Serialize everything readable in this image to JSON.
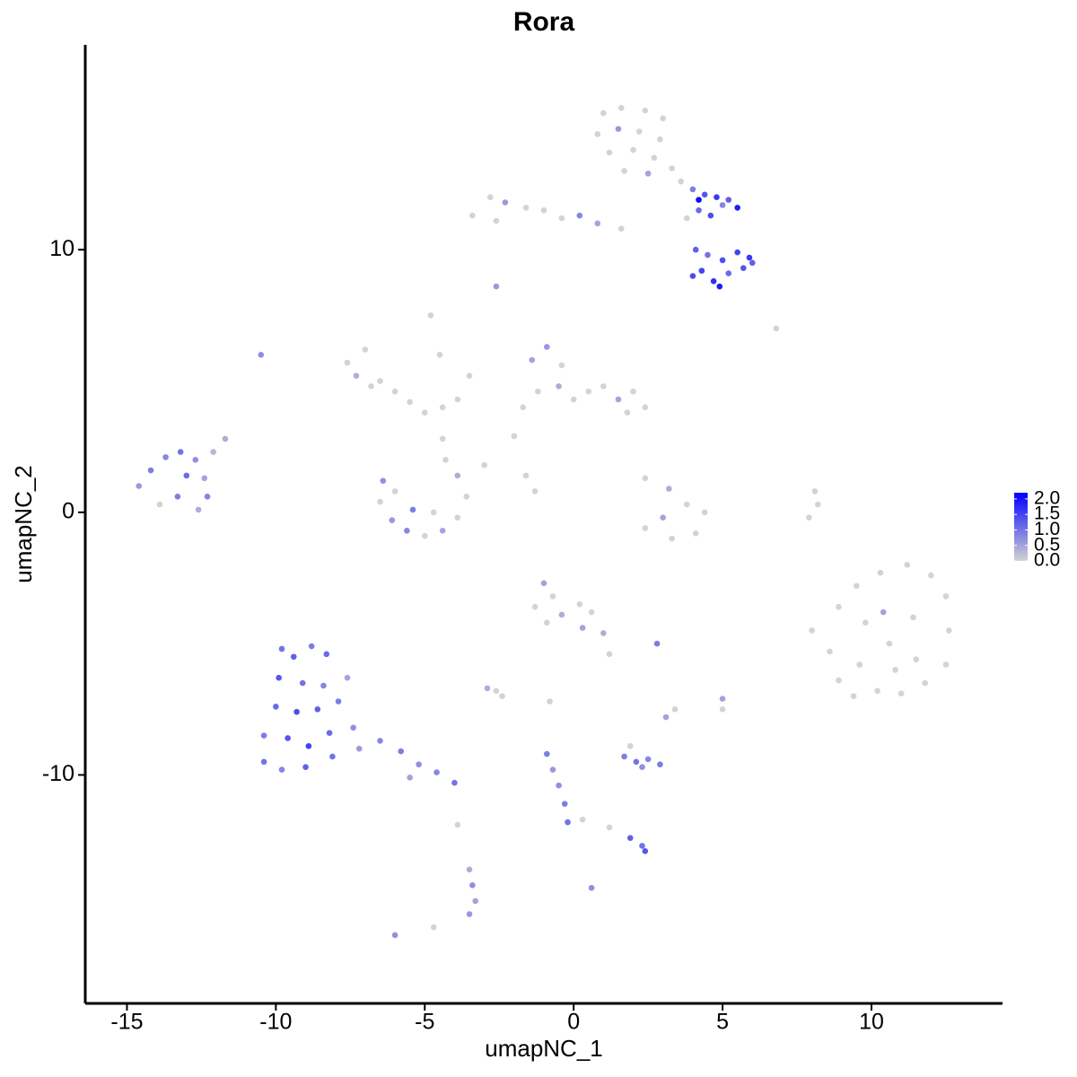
{
  "chart_data": {
    "type": "scatter",
    "title": "Rora",
    "x_label": "umapNC_1",
    "y_label": "umapNC_2",
    "xlim": [
      -16.4,
      14.4
    ],
    "ylim": [
      -18.7,
      17.8
    ],
    "xticks": [
      -15,
      -10,
      -5,
      0,
      5,
      10
    ],
    "yticks": [
      -10,
      0,
      10
    ],
    "color_low": "#d3d3d3",
    "color_high": "#0000ff",
    "color_range": [
      0,
      2.2
    ],
    "colorbar_ticks": [
      {
        "value": 0,
        "label": "0.0"
      },
      {
        "value": 0.5,
        "label": "0.5"
      },
      {
        "value": 1,
        "label": "1.0"
      },
      {
        "value": 1.5,
        "label": "1.5"
      },
      {
        "value": 2,
        "label": "2.0"
      }
    ],
    "x": [
      1.0,
      1.6,
      2.4,
      3.0,
      0.8,
      1.5,
      2.2,
      2.9,
      1.2,
      2.0,
      2.7,
      3.3,
      1.7,
      2.5,
      3.6,
      4.0,
      4.4,
      4.8,
      5.2,
      5.5,
      4.2,
      4.6,
      5.0,
      3.8,
      4.1,
      4.5,
      5.0,
      5.5,
      5.9,
      5.7,
      4.3,
      4.7,
      4.9,
      5.2,
      4.0,
      6.0,
      -3.4,
      -2.8,
      -2.3,
      -1.6,
      -1.0,
      -0.4,
      0.2,
      0.8,
      1.6,
      -2.6,
      -2.6,
      -10.5,
      6.8,
      -4.8,
      -7.6,
      -7.0,
      -7.3,
      -6.5,
      -6.0,
      -5.5,
      -5.0,
      -4.4,
      -3.9,
      -4.5,
      -3.5,
      -6.8,
      -4.4,
      -4.3,
      -6.4,
      -6.5,
      -6.1,
      -5.6,
      -5.0,
      -4.4,
      -3.9,
      -3.6,
      -3.9,
      -5.4,
      -4.7,
      -6.0,
      -1.7,
      -1.2,
      -1.4,
      -0.9,
      -0.4,
      -0.5,
      0.0,
      0.5,
      1.0,
      1.5,
      2.0,
      2.4,
      1.8,
      -2.0,
      -3.0,
      -1.3,
      -1.6,
      2.4,
      3.2,
      3.8,
      4.4,
      4.1,
      3.3,
      2.4,
      3.0,
      8.1,
      7.9,
      8.2,
      8.0,
      8.6,
      8.9,
      9.4,
      10.2,
      11.0,
      11.8,
      12.5,
      12.6,
      12.5,
      12.0,
      11.2,
      10.3,
      9.5,
      8.9,
      9.8,
      10.6,
      11.4,
      10.4,
      9.6,
      11.5,
      10.8,
      -14.6,
      -14.2,
      -13.7,
      -13.2,
      -12.7,
      -12.4,
      -12.3,
      -12.6,
      -13.3,
      -13.9,
      -13.0,
      -11.7,
      -12.1,
      -9.8,
      -9.4,
      -8.8,
      -8.3,
      -9.9,
      -9.1,
      -8.4,
      -10.0,
      -9.3,
      -8.6,
      -7.9,
      -10.4,
      -9.6,
      -8.9,
      -8.2,
      -7.4,
      -10.4,
      -9.8,
      -9.0,
      -8.1,
      -7.2,
      -7.6,
      -6.5,
      -5.8,
      -5.2,
      -4.6,
      -4.0,
      -5.5,
      -1.0,
      -0.7,
      -1.3,
      -0.4,
      0.2,
      0.6,
      1.0,
      1.2,
      -0.9,
      0.3,
      -2.9,
      -2.4,
      -2.6,
      -0.8,
      2.8,
      5.0,
      5.0,
      3.4,
      3.1,
      1.7,
      2.1,
      2.5,
      2.9,
      2.3,
      1.9,
      -0.9,
      -0.7,
      -0.5,
      -0.3,
      -0.2,
      0.3,
      1.2,
      1.9,
      2.3,
      2.4,
      -3.5,
      -3.4,
      -3.3,
      -3.5,
      -3.9,
      0.6,
      -6.0,
      -4.7,
      4.2
    ],
    "y": [
      15.2,
      15.4,
      15.3,
      15.0,
      14.4,
      14.6,
      14.5,
      14.2,
      13.7,
      13.8,
      13.5,
      13.1,
      13.0,
      12.9,
      12.6,
      12.3,
      12.1,
      12.0,
      11.9,
      11.6,
      11.5,
      11.3,
      11.7,
      11.2,
      10.0,
      9.8,
      9.6,
      9.9,
      9.7,
      9.3,
      9.2,
      8.8,
      8.6,
      9.1,
      9.0,
      9.5,
      11.3,
      12.0,
      11.8,
      11.6,
      11.5,
      11.2,
      11.3,
      11.0,
      10.8,
      11.1,
      8.6,
      6.0,
      7.0,
      7.5,
      5.7,
      6.2,
      5.2,
      5.0,
      4.6,
      4.2,
      3.8,
      4.0,
      4.3,
      6.0,
      5.2,
      4.8,
      2.8,
      2.0,
      1.2,
      0.4,
      -0.3,
      -0.7,
      -0.9,
      -0.7,
      -0.2,
      0.6,
      1.4,
      0.1,
      0.0,
      0.8,
      4.0,
      4.6,
      5.8,
      6.3,
      5.6,
      4.8,
      4.3,
      4.6,
      4.8,
      4.3,
      4.6,
      4.0,
      3.8,
      2.9,
      1.8,
      0.8,
      1.4,
      1.3,
      0.9,
      0.3,
      0.0,
      -0.8,
      -1.0,
      -0.6,
      -0.2,
      0.8,
      -0.2,
      0.3,
      -4.5,
      -5.3,
      -6.4,
      -7.0,
      -6.8,
      -6.9,
      -6.5,
      -5.8,
      -4.5,
      -3.2,
      -2.4,
      -2.0,
      -2.3,
      -2.8,
      -3.6,
      -4.2,
      -5.0,
      -4.0,
      -3.8,
      -5.8,
      -5.6,
      -6.0,
      1.0,
      1.6,
      2.1,
      2.3,
      2.0,
      1.3,
      0.6,
      0.1,
      0.6,
      0.3,
      1.4,
      2.8,
      2.3,
      -5.2,
      -5.5,
      -5.1,
      -5.4,
      -6.3,
      -6.5,
      -6.6,
      -7.4,
      -7.6,
      -7.5,
      -7.2,
      -8.5,
      -8.6,
      -8.9,
      -8.4,
      -8.2,
      -9.5,
      -9.8,
      -9.7,
      -9.3,
      -9.0,
      -6.3,
      -8.7,
      -9.1,
      -9.6,
      -9.9,
      -10.3,
      -10.1,
      -2.7,
      -3.2,
      -3.6,
      -3.9,
      -3.5,
      -3.8,
      -4.6,
      -5.4,
      -4.2,
      -4.4,
      -6.7,
      -7.0,
      -6.8,
      -7.2,
      -5.0,
      -7.1,
      -7.5,
      -7.5,
      -7.8,
      -9.3,
      -9.5,
      -9.4,
      -9.6,
      -9.7,
      -8.9,
      -9.2,
      -9.8,
      -10.4,
      -11.1,
      -11.8,
      -11.7,
      -12.0,
      -12.4,
      -12.7,
      -12.9,
      -13.6,
      -14.2,
      -14.8,
      -15.3,
      -11.9,
      -14.3,
      -16.1,
      -15.8,
      11.9
    ],
    "values": [
      0,
      0,
      0,
      0,
      0,
      0.6,
      0,
      0,
      0,
      0,
      0,
      0,
      0,
      0.5,
      0,
      0.9,
      1.3,
      1.6,
      1.2,
      1.9,
      1.1,
      1.4,
      0.8,
      0,
      1.2,
      1.0,
      1.4,
      1.5,
      1.6,
      1.3,
      1.5,
      1.7,
      1.9,
      1.1,
      1.4,
      1.2,
      0,
      0,
      0.6,
      0,
      0,
      0,
      0.8,
      0.5,
      0,
      0,
      0.6,
      0.7,
      0,
      0,
      0,
      0,
      0.4,
      0,
      0,
      0,
      0,
      0,
      0,
      0,
      0,
      0,
      0,
      0,
      0.7,
      0,
      0.6,
      0.8,
      0,
      0.5,
      0,
      0,
      0.4,
      0.9,
      0,
      0,
      0,
      0,
      0.5,
      0.6,
      0,
      0.4,
      0,
      0,
      0,
      0.5,
      0,
      0,
      0,
      0,
      0,
      0,
      0,
      0,
      0.4,
      0,
      0,
      0,
      0,
      0,
      0.5,
      0,
      0,
      0,
      0,
      0,
      0,
      0,
      0,
      0,
      0,
      0,
      0,
      0,
      0,
      0,
      0,
      0,
      0,
      0,
      0,
      0,
      0.5,
      0,
      0,
      0,
      0.6,
      0.9,
      0.8,
      1.0,
      0.7,
      0.5,
      0.8,
      0.4,
      0.9,
      0,
      1.1,
      0.4,
      0.3,
      1.0,
      1.2,
      0.9,
      1.1,
      1.3,
      1.0,
      0.8,
      1.1,
      1.4,
      1.2,
      0.9,
      0.9,
      1.3,
      1.5,
      1.1,
      0.7,
      1.0,
      0.8,
      1.2,
      1.0,
      0.6,
      0.5,
      0.8,
      0.9,
      0.7,
      0.8,
      1.0,
      0.5,
      0.5,
      0,
      0,
      0.4,
      0,
      0,
      0.4,
      0,
      0,
      0.5,
      0.4,
      0,
      0,
      0,
      0.9,
      0.5,
      0,
      0,
      0.5,
      0.9,
      1.0,
      0.8,
      0.9,
      0.7,
      0,
      0.9,
      0.6,
      0.7,
      0.9,
      1.0,
      0,
      0,
      1.2,
      1.0,
      1.3,
      0.4,
      0.7,
      0.5,
      0.6,
      0,
      0.7,
      0.7,
      0,
      2.1
    ]
  }
}
